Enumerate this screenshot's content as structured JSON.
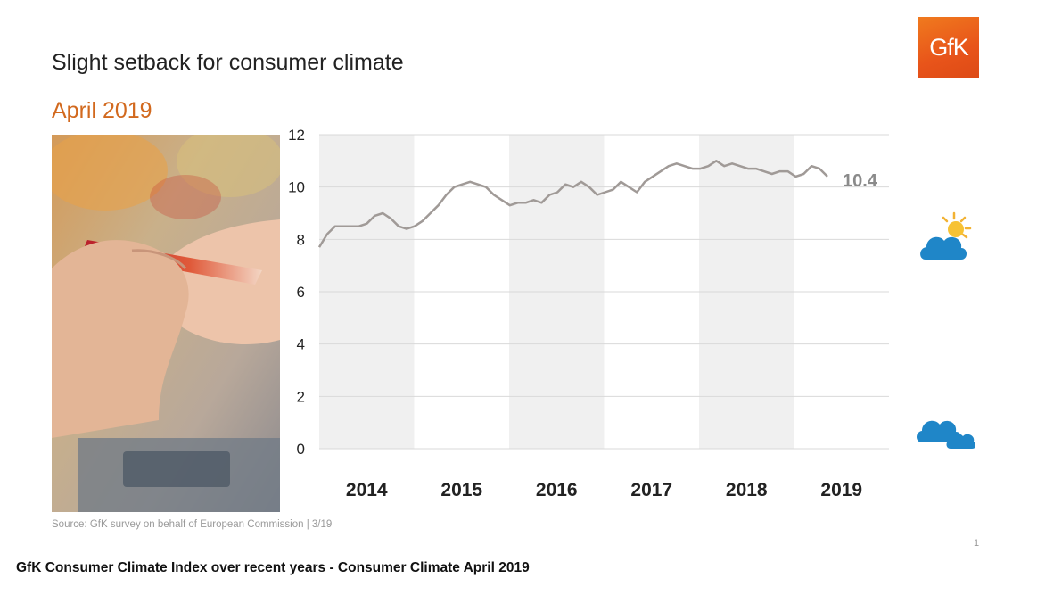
{
  "header": {
    "title": "Slight setback for consumer climate",
    "subtitle": "April 2019",
    "logo_text": "GfK"
  },
  "icons": {
    "logo": "gfk-logo",
    "photo": "credit-card-payment-photo",
    "sunny": "sun-behind-cloud-icon",
    "cloudy": "clouds-icon"
  },
  "colors": {
    "brand_orange": "#e8541a",
    "subtitle_orange": "#d2691e",
    "line": "#a09a97",
    "band": "#f0f0f0",
    "icon_blue": "#1f86c8"
  },
  "chart_data": {
    "type": "line",
    "title": "",
    "xlabel": "",
    "ylabel": "",
    "ylim": [
      0,
      12
    ],
    "yticks": [
      0,
      2,
      4,
      6,
      8,
      10,
      12
    ],
    "x_year_labels": [
      "2014",
      "2015",
      "2016",
      "2017",
      "2018",
      "2019"
    ],
    "grid": true,
    "alternating_year_bands": true,
    "last_value_label": "10.4",
    "series": [
      {
        "values": [
          7.7,
          8.2,
          8.5,
          8.5,
          8.5,
          8.5,
          8.6,
          8.9,
          9.0,
          8.8,
          8.5,
          8.4,
          8.5,
          8.7,
          9.0,
          9.3,
          9.7,
          10.0,
          10.1,
          10.2,
          10.1,
          10.0,
          9.7,
          9.5,
          9.3,
          9.4,
          9.4,
          9.5,
          9.4,
          9.7,
          9.8,
          10.1,
          10.0,
          10.2,
          10.0,
          9.7,
          9.8,
          9.9,
          10.2,
          10.0,
          9.8,
          10.2,
          10.4,
          10.6,
          10.8,
          10.9,
          10.8,
          10.7,
          10.7,
          10.8,
          11.0,
          10.8,
          10.9,
          10.8,
          10.7,
          10.7,
          10.6,
          10.5,
          10.6,
          10.6,
          10.4,
          10.5,
          10.8,
          10.7,
          10.4
        ]
      }
    ]
  },
  "footer": {
    "source": "Source: GfK survey on behalf of European Commission  | 3/19",
    "page_number": "1",
    "caption": "GfK Consumer Climate Index over recent years - Consumer Climate April 2019"
  }
}
